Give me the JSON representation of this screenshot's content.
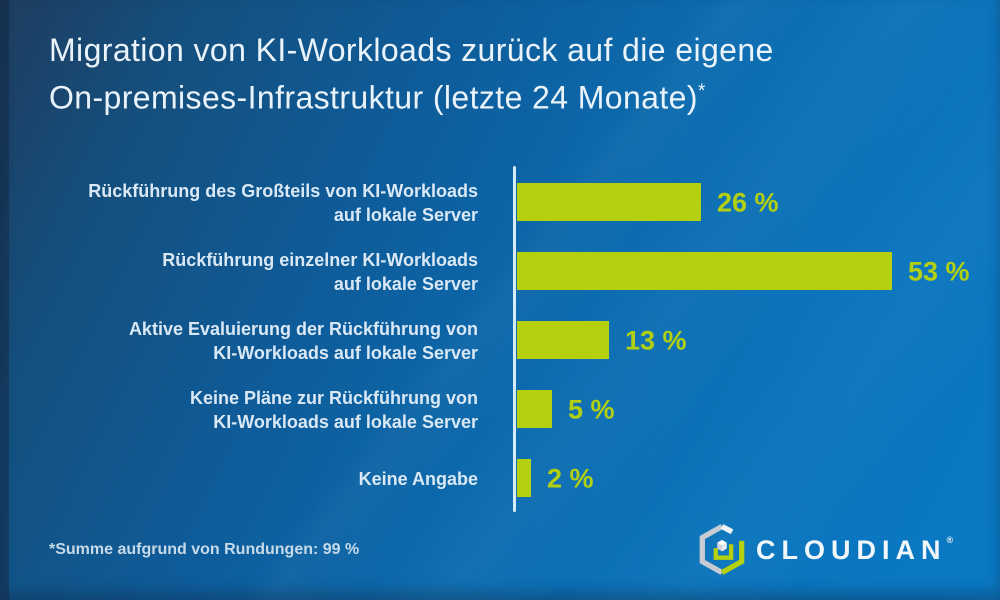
{
  "title": {
    "line1": "Migration von KI-Workloads zurück auf die eigene",
    "line2": "On-premises-Infrastruktur (letzte 24 Monate)",
    "asterisk": "*"
  },
  "chart_data": {
    "type": "bar",
    "orientation": "horizontal",
    "title": "Migration von KI-Workloads zurück auf die eigene On-premises-Infrastruktur (letzte 24 Monate)*",
    "categories": [
      "Rückführung des Großteils von KI-Workloads auf lokale Server",
      "Rückführung einzelner KI-Workloads auf lokale Server",
      "Aktive Evaluierung der Rückführung von KI-Workloads auf lokale Server",
      "Keine Pläne zur Rückführung von KI-Workloads auf lokale Server",
      "Keine Angabe"
    ],
    "category_lines": [
      [
        "Rückführung des Großteils von KI-Workloads",
        "auf lokale Server"
      ],
      [
        "Rückführung einzelner KI-Workloads",
        "auf lokale Server"
      ],
      [
        "Aktive Evaluierung der Rückführung von",
        "KI-Workloads auf lokale Server"
      ],
      [
        "Keine Pläne zur Rückführung von",
        "KI-Workloads auf lokale Server"
      ],
      [
        "Keine Angabe"
      ]
    ],
    "values": [
      26,
      53,
      13,
      5,
      2
    ],
    "value_labels": [
      "26 %",
      "53 %",
      "13 %",
      "5 %",
      "2 %"
    ],
    "unit": "%",
    "xlim": [
      0,
      60
    ],
    "grid": false,
    "legend": false,
    "bar_color": "#b4d00f",
    "value_color": "#b2d011",
    "axis_color": "#d4ecf8",
    "label_color": "#d9e8f4"
  },
  "footnote": "*Summe aufgrund von Rundungen: 99 %",
  "logo": {
    "icon": "cloudian-hexagon-cube-icon",
    "text": "CLOUDIAN",
    "registered_mark": "®"
  },
  "colors": {
    "background_top_left": "#1e3d5f",
    "background_mid": "#0d5c9a",
    "background_right": "#0a79c4",
    "title_text": "#eaf3fa",
    "footnote_text": "#c6dae9",
    "bar_green": "#b4d00f"
  }
}
